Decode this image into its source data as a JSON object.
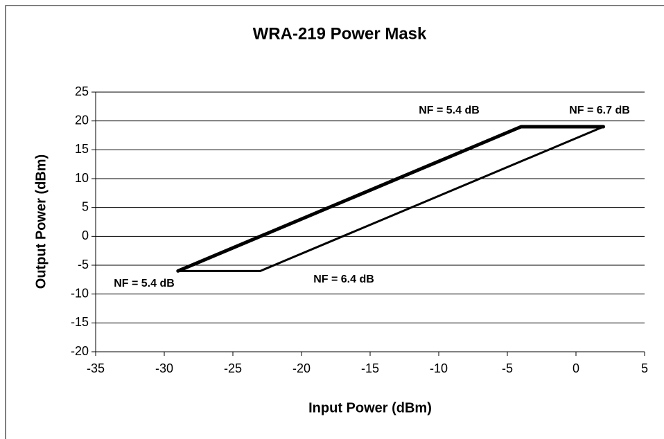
{
  "chart_data": {
    "type": "line",
    "title": "WRA-219 Power Mask",
    "x_label": "Input Power (dBm)",
    "y_label": "Output Power (dBm)",
    "series": [
      {
        "color": "#000000",
        "line_width": 5,
        "x": [
          -29,
          -4,
          2
        ],
        "values": [
          -6,
          19,
          19
        ]
      },
      {
        "color": "#000000",
        "line_width": 3,
        "x": [
          -29,
          -23,
          2
        ],
        "values": [
          -6,
          -6,
          19
        ]
      }
    ],
    "annotations": [
      "NF = 5.4 dB",
      "NF = 6.7 dB",
      "NF = 5.4 dB",
      "NF = 6.4 dB"
    ],
    "xlim": [
      -35,
      5
    ],
    "xticks": [
      -35,
      -30,
      -25,
      -20,
      -15,
      -10,
      -5,
      0,
      5
    ],
    "ylim": [
      -20,
      25
    ],
    "yticks": [
      -20,
      -15,
      -10,
      -5,
      0,
      5,
      10,
      15,
      20,
      25
    ],
    "grid": true
  }
}
